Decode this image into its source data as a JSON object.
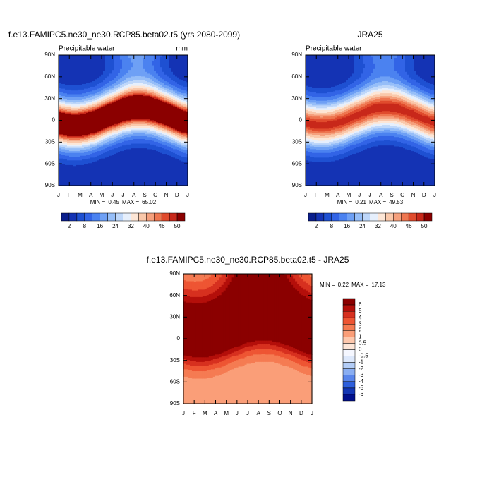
{
  "chart_data": [
    {
      "type": "contour",
      "title": "f.e13.FAMIPC5.ne30_ne30.RCP85.beta02.t5 (yrs 2080-2099)",
      "subtitle_left": "Precipitable water",
      "units": "mm",
      "categories": [
        "J",
        "F",
        "M",
        "A",
        "M",
        "J",
        "J",
        "A",
        "S",
        "O",
        "N",
        "D",
        "J"
      ],
      "ylim": [
        -90,
        90
      ],
      "yticks": [
        {
          "value": 90,
          "label": "90N"
        },
        {
          "value": 60,
          "label": "60N"
        },
        {
          "value": 30,
          "label": "30N"
        },
        0,
        {
          "value": -30,
          "label": "30S"
        },
        {
          "value": -60,
          "label": "60S"
        },
        {
          "value": -90,
          "label": "90S"
        }
      ],
      "stats": {
        "min_label": "MIN =",
        "min": 0.45,
        "max_label": "MAX =",
        "max": 65.02
      },
      "colorbar": {
        "orientation": "horizontal",
        "labels": [
          2,
          8,
          16,
          24,
          32,
          40,
          46,
          50
        ],
        "colors": [
          "#0a1e8c",
          "#1433b4",
          "#1e50d2",
          "#3264e6",
          "#4b82f0",
          "#6ea0f5",
          "#96bef8",
          "#bed7fa",
          "#e6effc",
          "#fde6d6",
          "#fac8aa",
          "#f5a07d",
          "#ee7650",
          "#e04b2d",
          "#c8281a",
          "#8b0000"
        ]
      }
    },
    {
      "type": "contour",
      "title": "JRA25",
      "subtitle_left": "Precipitable water",
      "categories": [
        "J",
        "F",
        "M",
        "A",
        "M",
        "J",
        "J",
        "A",
        "S",
        "O",
        "N",
        "D",
        "J"
      ],
      "ylim": [
        -90,
        90
      ],
      "yticks": [
        {
          "value": 90,
          "label": "90N"
        },
        {
          "value": 60,
          "label": "60N"
        },
        {
          "value": 30,
          "label": "30N"
        },
        0,
        {
          "value": -30,
          "label": "30S"
        },
        {
          "value": -60,
          "label": "60S"
        },
        {
          "value": -90,
          "label": "90S"
        }
      ],
      "stats": {
        "min_label": "MIN =",
        "min": 0.21,
        "max_label": "MAX =",
        "max": 49.53
      },
      "colorbar": {
        "orientation": "horizontal",
        "labels": [
          2,
          8,
          16,
          24,
          32,
          40,
          46,
          50
        ],
        "colors": [
          "#0a1e8c",
          "#1433b4",
          "#1e50d2",
          "#3264e6",
          "#4b82f0",
          "#6ea0f5",
          "#96bef8",
          "#bed7fa",
          "#e6effc",
          "#fde6d6",
          "#fac8aa",
          "#f5a07d",
          "#ee7650",
          "#e04b2d",
          "#c8281a",
          "#8b0000"
        ]
      }
    },
    {
      "type": "contour",
      "title": "f.e13.FAMIPC5.ne30_ne30.RCP85.beta02.t5 - JRA25",
      "categories": [
        "J",
        "F",
        "M",
        "A",
        "M",
        "J",
        "J",
        "A",
        "S",
        "O",
        "N",
        "D",
        "J"
      ],
      "ylim": [
        -90,
        90
      ],
      "yticks": [
        {
          "value": 90,
          "label": "90N"
        },
        {
          "value": 60,
          "label": "60N"
        },
        {
          "value": 30,
          "label": "30N"
        },
        0,
        {
          "value": -30,
          "label": "30S"
        },
        {
          "value": -60,
          "label": "60S"
        },
        {
          "value": -90,
          "label": "90S"
        }
      ],
      "stats": {
        "min_label": "MIN =",
        "min": 0.22,
        "max_label": "MAX =",
        "max": 17.13
      },
      "colorbar": {
        "orientation": "vertical",
        "labels": [
          6,
          5,
          4,
          3,
          2,
          1,
          0.5,
          0,
          -0.5,
          -1,
          -2,
          -3,
          -4,
          -5,
          -6
        ],
        "colors": [
          "#8b0000",
          "#b40f0a",
          "#d7301f",
          "#ee5533",
          "#f57b52",
          "#fa9e78",
          "#fdc8ad",
          "#fde6d8",
          "#f5f7ff",
          "#dde8fb",
          "#b3cdf7",
          "#8aaef2",
          "#5a86eb",
          "#2e5fdc",
          "#1336b4",
          "#000f8c"
        ]
      }
    }
  ]
}
